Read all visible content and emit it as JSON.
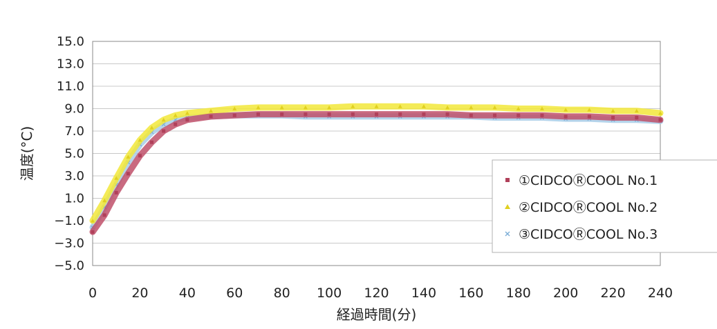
{
  "chart_data": {
    "type": "line",
    "title": "",
    "xlabel": "経過時間(分)",
    "ylabel": "温度(°C)",
    "xlim": [
      0,
      240
    ],
    "ylim": [
      -5.0,
      15.0
    ],
    "x_ticks": [
      "0",
      "20",
      "40",
      "60",
      "80",
      "100",
      "120",
      "140",
      "160",
      "180",
      "200",
      "220",
      "240"
    ],
    "y_ticks": [
      "15.0",
      "13.0",
      "11.0",
      "9.0",
      "7.0",
      "5.0",
      "3.0",
      "1.0",
      "−1.0",
      "−3.0",
      "−5.0"
    ],
    "grid": "horizontal",
    "legend_position": "right",
    "x": [
      0,
      5,
      10,
      15,
      20,
      25,
      30,
      35,
      40,
      50,
      60,
      70,
      80,
      90,
      100,
      110,
      120,
      130,
      140,
      150,
      160,
      170,
      180,
      190,
      200,
      210,
      220,
      230,
      240
    ],
    "series": [
      {
        "name": "①CIDCOⓇCOOL No.1",
        "color": "#c0506a",
        "marker": "square",
        "values": [
          -2.0,
          -0.5,
          1.5,
          3.2,
          4.8,
          6.0,
          7.0,
          7.6,
          8.0,
          8.3,
          8.4,
          8.5,
          8.5,
          8.5,
          8.5,
          8.5,
          8.5,
          8.5,
          8.5,
          8.5,
          8.4,
          8.4,
          8.4,
          8.4,
          8.3,
          8.3,
          8.2,
          8.2,
          8.0
        ]
      },
      {
        "name": "②CIDCOⓇCOOL No.2",
        "color": "#f2e83a",
        "marker": "triangle",
        "values": [
          -1.0,
          0.8,
          2.8,
          4.7,
          6.2,
          7.3,
          8.0,
          8.4,
          8.6,
          8.8,
          9.0,
          9.1,
          9.1,
          9.1,
          9.1,
          9.2,
          9.2,
          9.2,
          9.2,
          9.1,
          9.1,
          9.1,
          9.0,
          9.0,
          8.9,
          8.9,
          8.8,
          8.8,
          8.6
        ]
      },
      {
        "name": "③CIDCOⓇCOOL No.3",
        "color": "#a8cce8",
        "marker": "x",
        "values": [
          -1.6,
          0.2,
          2.2,
          4.2,
          5.8,
          6.9,
          7.6,
          8.0,
          8.2,
          8.3,
          8.4,
          8.4,
          8.4,
          8.3,
          8.3,
          8.3,
          8.3,
          8.3,
          8.3,
          8.3,
          8.3,
          8.2,
          8.2,
          8.2,
          8.1,
          8.1,
          8.0,
          8.0,
          7.9
        ]
      }
    ]
  }
}
